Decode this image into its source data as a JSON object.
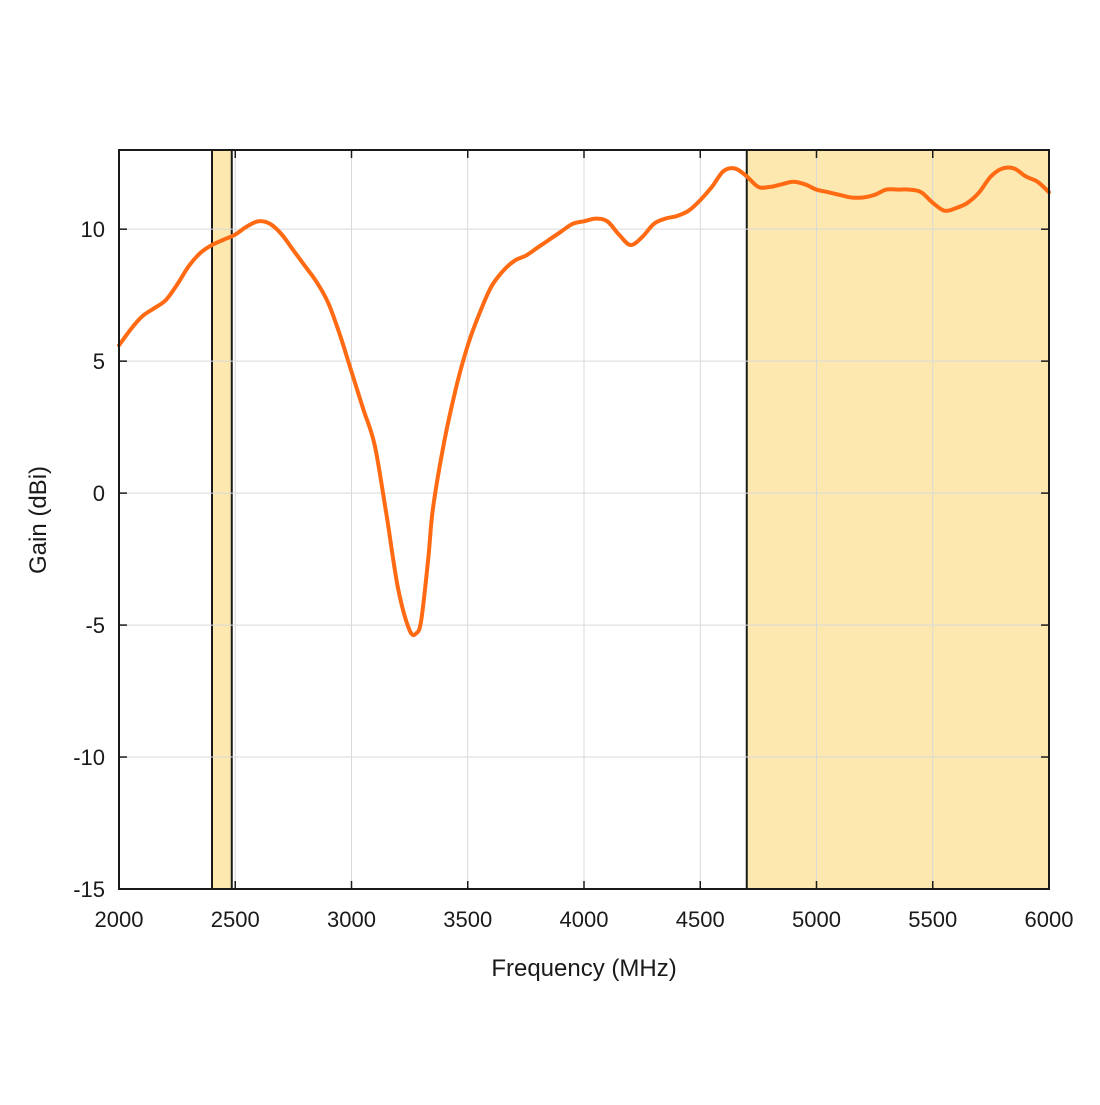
{
  "chart_data": {
    "type": "line",
    "title": "",
    "xlabel": "Frequency (MHz)",
    "ylabel": "Gain (dBi)",
    "xlim": [
      2000,
      6000
    ],
    "ylim": [
      -15,
      13
    ],
    "x_ticks": [
      2000,
      2500,
      3000,
      3500,
      4000,
      4500,
      5000,
      5500,
      6000
    ],
    "x_tick_labels": [
      "2000",
      "2500",
      "3000",
      "3500",
      "4000",
      "4500",
      "5000",
      "5500",
      "6000"
    ],
    "y_ticks": [
      -15,
      -10,
      -5,
      0,
      5,
      10
    ],
    "y_tick_labels": [
      "-15",
      "-10",
      "-5",
      "0",
      "5",
      "10"
    ],
    "grid": true,
    "shaded_bands": [
      {
        "x_start": 2400,
        "x_end": 2485,
        "color": "#fde8b0"
      },
      {
        "x_start": 4700,
        "x_end": 6000,
        "color": "#fde8b0"
      }
    ],
    "series": [
      {
        "color": "#ff6a13",
        "x": [
          2000,
          2050,
          2100,
          2150,
          2200,
          2250,
          2300,
          2350,
          2400,
          2450,
          2500,
          2550,
          2600,
          2650,
          2700,
          2750,
          2800,
          2850,
          2900,
          2950,
          3000,
          3050,
          3100,
          3150,
          3200,
          3250,
          3280,
          3300,
          3330,
          3350,
          3400,
          3450,
          3500,
          3550,
          3600,
          3650,
          3700,
          3750,
          3800,
          3850,
          3900,
          3950,
          4000,
          4050,
          4100,
          4150,
          4200,
          4250,
          4300,
          4350,
          4400,
          4450,
          4500,
          4550,
          4600,
          4650,
          4700,
          4750,
          4800,
          4850,
          4900,
          4950,
          5000,
          5050,
          5100,
          5150,
          5200,
          5250,
          5300,
          5350,
          5400,
          5450,
          5500,
          5550,
          5600,
          5650,
          5700,
          5750,
          5800,
          5850,
          5900,
          5950,
          6000
        ],
        "y": [
          5.6,
          6.2,
          6.7,
          7.0,
          7.3,
          7.9,
          8.6,
          9.1,
          9.4,
          9.6,
          9.8,
          10.1,
          10.3,
          10.2,
          9.8,
          9.2,
          8.6,
          8.0,
          7.2,
          6.0,
          4.6,
          3.2,
          1.8,
          -0.8,
          -3.6,
          -5.2,
          -5.3,
          -4.8,
          -2.5,
          -0.6,
          2.0,
          4.0,
          5.6,
          6.8,
          7.8,
          8.4,
          8.8,
          9.0,
          9.3,
          9.6,
          9.9,
          10.2,
          10.3,
          10.4,
          10.3,
          9.8,
          9.4,
          9.7,
          10.2,
          10.4,
          10.5,
          10.7,
          11.1,
          11.6,
          12.2,
          12.3,
          12.0,
          11.6,
          11.6,
          11.7,
          11.8,
          11.7,
          11.5,
          11.4,
          11.3,
          11.2,
          11.2,
          11.3,
          11.5,
          11.5,
          11.5,
          11.4,
          11.0,
          10.7,
          10.8,
          11.0,
          11.4,
          12.0,
          12.3,
          12.3,
          12.0,
          11.8,
          11.4
        ]
      }
    ]
  }
}
